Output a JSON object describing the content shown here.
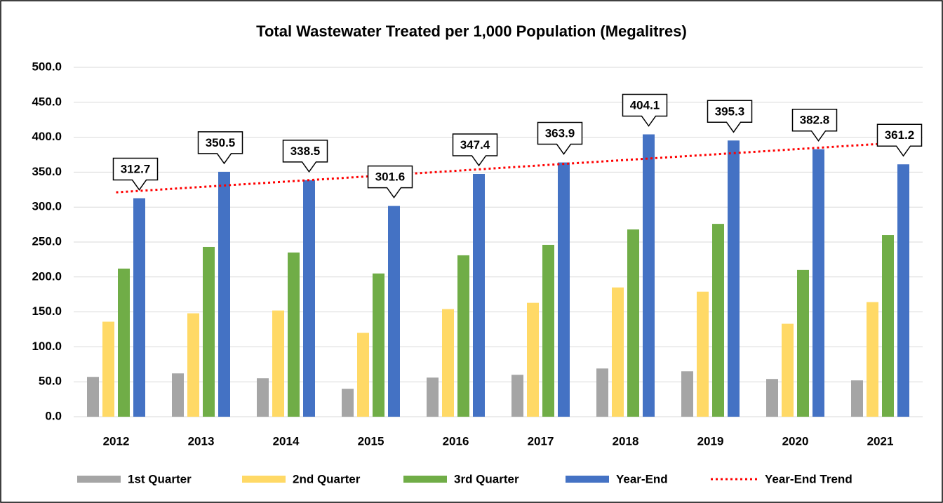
{
  "chart_data": {
    "type": "bar",
    "title": "Total Wastewater Treated per 1,000 Population (Megalitres)",
    "categories": [
      "2012",
      "2013",
      "2014",
      "2015",
      "2016",
      "2017",
      "2018",
      "2019",
      "2020",
      "2021"
    ],
    "series": [
      {
        "name": "1st Quarter",
        "color": "#a5a5a5",
        "values": [
          57,
          62,
          55,
          40,
          56,
          60,
          69,
          65,
          54,
          52
        ]
      },
      {
        "name": "2nd Quarter",
        "color": "#ffd966",
        "values": [
          136,
          148,
          152,
          120,
          154,
          163,
          185,
          179,
          133,
          164
        ]
      },
      {
        "name": "3rd Quarter",
        "color": "#70ad47",
        "values": [
          212,
          243,
          235,
          205,
          231,
          246,
          268,
          276,
          210,
          260
        ]
      },
      {
        "name": "Year-End",
        "color": "#4472c4",
        "values": [
          312.7,
          350.5,
          338.5,
          301.6,
          347.4,
          363.9,
          404.1,
          395.3,
          382.8,
          361.2
        ]
      },
      {
        "name": "Year-End Trend",
        "color": "#ff0000",
        "type": "line",
        "values": [
          321.1,
          328.8,
          336.5,
          344.2,
          351.9,
          359.7,
          367.4,
          375.1,
          382.8,
          390.5
        ]
      }
    ],
    "ylim": [
      0,
      500
    ],
    "yticks": [
      {
        "value": 0,
        "label": "0.0"
      },
      {
        "value": 50,
        "label": "50.0"
      },
      {
        "value": 100,
        "label": "100.0"
      },
      {
        "value": 150,
        "label": "150.0"
      },
      {
        "value": 200,
        "label": "200.0"
      },
      {
        "value": 250,
        "label": "250.0"
      },
      {
        "value": 300,
        "label": "300.0"
      },
      {
        "value": 350,
        "label": "350.0"
      },
      {
        "value": 400,
        "label": "400.0"
      },
      {
        "value": 450,
        "label": "450.0"
      },
      {
        "value": 500,
        "label": "500.0"
      }
    ],
    "grid": true,
    "legend": "bottom"
  }
}
